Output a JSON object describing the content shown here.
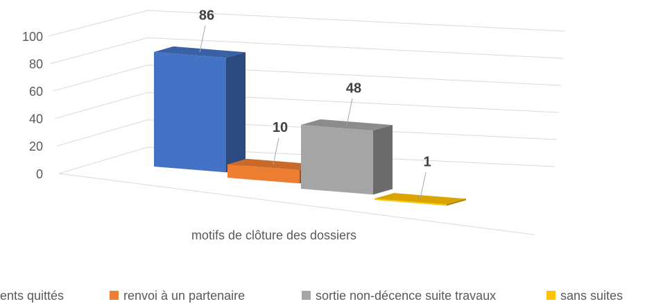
{
  "chart_data": {
    "type": "bar",
    "categories": [
      "motifs de clôture des dossiers"
    ],
    "series": [
      {
        "name": "ents quittés",
        "color": "#4472c4",
        "values": [
          86
        ]
      },
      {
        "name": "renvoi à un partenaire",
        "color": "#ed7d31",
        "values": [
          10
        ]
      },
      {
        "name": "sortie non-décence suite travaux",
        "color": "#a5a5a5",
        "values": [
          48
        ]
      },
      {
        "name": "sans suites",
        "color": "#ffc000",
        "values": [
          1
        ]
      }
    ],
    "ylim": [
      0,
      100
    ],
    "yticks": [
      0,
      20,
      40,
      60,
      80,
      100
    ],
    "grid": true,
    "legend": "bottom"
  }
}
